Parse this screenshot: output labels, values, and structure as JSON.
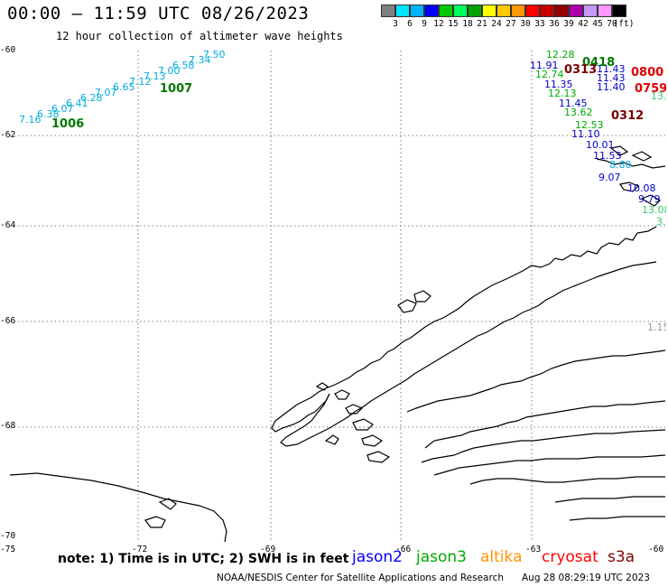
{
  "header": {
    "title": "00:00 – 11:59 UTC 08/26/2023",
    "subtitle": "12 hour collection of altimeter wave heights"
  },
  "scale": {
    "colors": [
      "#7f7f7f",
      "#00e5ff",
      "#00b2ff",
      "#0000ff",
      "#00c800",
      "#00ff5a",
      "#00a000",
      "#ffff00",
      "#ffc800",
      "#ff9600",
      "#ff0000",
      "#c80000",
      "#960000",
      "#aa00aa",
      "#c896ff",
      "#ff96ff",
      "#000000"
    ],
    "labels": [
      "3",
      "6",
      "9",
      "12",
      "15",
      "18",
      "21",
      "24",
      "27",
      "30",
      "33",
      "36",
      "39",
      "42",
      "45",
      "70"
    ],
    "unit": "(ft)"
  },
  "axes": {
    "lat_labels": [
      "-60",
      "-62",
      "-64",
      "-66",
      "-68",
      "-70"
    ],
    "lon_labels": [
      "-75",
      "-72",
      "-69",
      "-66",
      "-63",
      "-60"
    ]
  },
  "tracks": [
    {
      "mission": "altika",
      "color": "#00aadd",
      "points": [
        {
          "v": "7.16"
        },
        {
          "v": "6.38"
        },
        {
          "v": "6.07"
        },
        {
          "v": "6.41"
        },
        {
          "v": "6.28"
        },
        {
          "v": "7.07"
        },
        {
          "v": "6.65"
        },
        {
          "v": "7.12"
        },
        {
          "v": "7.13"
        },
        {
          "v": "7.00"
        },
        {
          "v": "6.58"
        },
        {
          "v": "7.34"
        },
        {
          "v": "7.50"
        }
      ]
    },
    {
      "mission": "jason3-a",
      "color": "#00aa00",
      "points": [
        {
          "v": "12.28"
        },
        {
          "v": "12.74"
        },
        {
          "v": "12.13"
        },
        {
          "v": "13.62"
        },
        {
          "v": "12.53"
        }
      ]
    },
    {
      "mission": "jason2",
      "color": "#0000cc",
      "points": [
        {
          "v": "11.91"
        },
        {
          "v": "11.35"
        },
        {
          "v": "11.45"
        },
        {
          "v": "11.43"
        },
        {
          "v": "11.43"
        },
        {
          "v": "11.40"
        },
        {
          "v": "11.10"
        },
        {
          "v": "10.01"
        },
        {
          "v": "11.53"
        },
        {
          "v": "9.07"
        },
        {
          "v": "10.08"
        },
        {
          "v": "9.79"
        }
      ]
    },
    {
      "mission": "misc-right",
      "color": "#00aadd",
      "points": [
        {
          "v": "8.80"
        }
      ]
    },
    {
      "mission": "green-right",
      "color": "#33cc66",
      "points": [
        {
          "v": "13.08"
        },
        {
          "v": "3."
        },
        {
          "v": "13."
        }
      ]
    },
    {
      "mission": "gray-right",
      "color": "#999999",
      "points": [
        {
          "v": "1.15"
        }
      ]
    }
  ],
  "stations": [
    {
      "label": "1006",
      "color": "#007700"
    },
    {
      "label": "1007",
      "color": "#007700"
    },
    {
      "label": "0418",
      "color": "#007700"
    },
    {
      "label": "0313",
      "color": "#770000"
    },
    {
      "label": "0312",
      "color": "#770000"
    },
    {
      "label": "0800",
      "color": "#dd0000"
    },
    {
      "label": "0759",
      "color": "#dd0000"
    }
  ],
  "footer": {
    "note": "note:  1) Time is in UTC;  2) SWH is in feet",
    "missions": [
      {
        "name": "jason2",
        "color": "#0000ff"
      },
      {
        "name": "jason3",
        "color": "#00aa00"
      },
      {
        "name": "altika",
        "color": "#ff9600"
      },
      {
        "name": "cryosat",
        "color": "#ff0000"
      },
      {
        "name": "s3a",
        "color": "#880000"
      }
    ],
    "credit": "NOAA/NESDIS Center for Satellite Applications and Research",
    "timestamp": "Aug 28 08:29:19 UTC 2023"
  }
}
